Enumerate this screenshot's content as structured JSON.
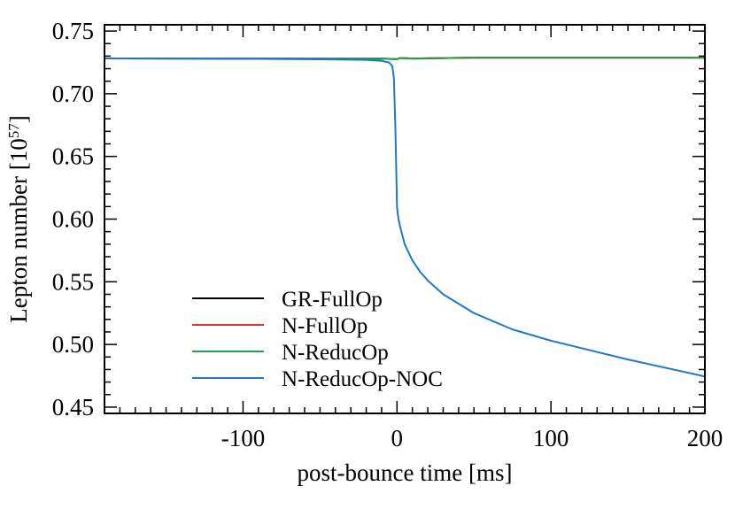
{
  "chart_data": {
    "type": "line",
    "title": "",
    "xlabel": "post-bounce time [ms]",
    "ylabel_main": "Lepton number [10",
    "ylabel_sup": "57",
    "ylabel_end": "]",
    "xlim": [
      -190,
      200
    ],
    "ylim": [
      0.445,
      0.755
    ],
    "x_ticks": [
      -100,
      0,
      100,
      200
    ],
    "x_tick_labels": [
      "-100",
      "0",
      "100",
      "200"
    ],
    "y_ticks": [
      0.45,
      0.5,
      0.55,
      0.6,
      0.65,
      0.7,
      0.75
    ],
    "y_tick_labels": [
      "0.45",
      "0.50",
      "0.55",
      "0.60",
      "0.65",
      "0.70",
      "0.75"
    ],
    "legend_position": "lower-left",
    "series": [
      {
        "name": "GR-FullOp",
        "color": "#000000",
        "x": [
          -190,
          -100,
          -50,
          -10,
          0,
          2,
          10,
          50,
          100,
          150,
          200
        ],
        "y": [
          0.7282,
          0.7281,
          0.728,
          0.728,
          0.7276,
          0.7285,
          0.7281,
          0.7288,
          0.7288,
          0.7288,
          0.7288
        ]
      },
      {
        "name": "N-FullOp",
        "color": "#e03030",
        "x": [
          -190,
          -100,
          -50,
          -10,
          0,
          2,
          10,
          50,
          100,
          150,
          200
        ],
        "y": [
          0.7282,
          0.7281,
          0.728,
          0.728,
          0.7276,
          0.7285,
          0.7281,
          0.7288,
          0.7288,
          0.7288,
          0.7288
        ]
      },
      {
        "name": "N-ReducOp",
        "color": "#22a049",
        "x": [
          -190,
          -100,
          -50,
          -10,
          0,
          2,
          10,
          50,
          100,
          150,
          200
        ],
        "y": [
          0.7282,
          0.7281,
          0.728,
          0.728,
          0.7276,
          0.7285,
          0.7281,
          0.7288,
          0.7288,
          0.7288,
          0.7288
        ]
      },
      {
        "name": "N-ReducOp-NOC",
        "color": "#1f78c8",
        "x": [
          -190,
          -100,
          -50,
          -20,
          -10,
          -5,
          -3,
          -2,
          -1,
          0,
          0.5,
          1,
          2,
          5,
          10,
          15,
          20,
          30,
          50,
          75,
          100,
          150,
          200
        ],
        "y": [
          0.7282,
          0.7279,
          0.7275,
          0.727,
          0.7262,
          0.7248,
          0.722,
          0.712,
          0.67,
          0.61,
          0.604,
          0.6,
          0.594,
          0.58,
          0.567,
          0.558,
          0.551,
          0.54,
          0.525,
          0.512,
          0.503,
          0.488,
          0.4745
        ]
      }
    ]
  }
}
